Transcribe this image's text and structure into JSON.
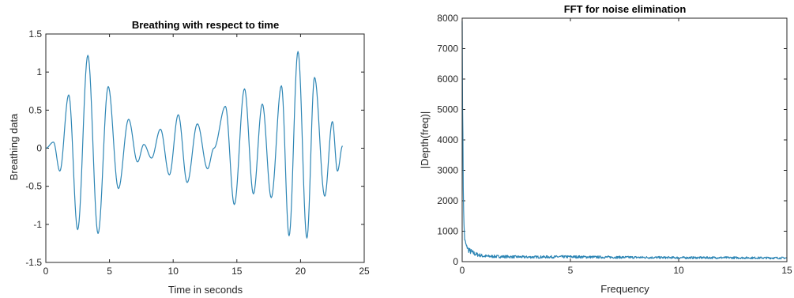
{
  "chart_data": [
    {
      "type": "line",
      "title": "Breathing with respect to time",
      "xlabel": "Time in seconds",
      "ylabel": "Breathing data",
      "xlim": [
        0,
        25
      ],
      "ylim": [
        -1.5,
        1.5
      ],
      "xticks": [
        0,
        5,
        10,
        15,
        20,
        25
      ],
      "yticks": [
        -1.5,
        -1,
        -0.5,
        0,
        0.5,
        1,
        1.5
      ],
      "xtick_labels": [
        "0",
        "5",
        "10",
        "15",
        "20",
        "25"
      ],
      "ytick_labels": [
        "-1.5",
        "-1",
        "-0.5",
        "0",
        "0.5",
        "1",
        "1.5"
      ],
      "grid": false,
      "color": "#2E86B5",
      "series": [
        {
          "extrema": [
            [
              0,
              0.0
            ],
            [
              0.6,
              0.08
            ],
            [
              1.1,
              -0.3
            ],
            [
              1.8,
              0.7
            ],
            [
              2.5,
              -1.07
            ],
            [
              3.3,
              1.22
            ],
            [
              4.1,
              -1.12
            ],
            [
              4.9,
              0.81
            ],
            [
              5.7,
              -0.53
            ],
            [
              6.5,
              0.38
            ],
            [
              7.2,
              -0.18
            ],
            [
              7.7,
              0.05
            ],
            [
              8.3,
              -0.13
            ],
            [
              9.0,
              0.25
            ],
            [
              9.7,
              -0.35
            ],
            [
              10.4,
              0.44
            ],
            [
              11.1,
              -0.45
            ],
            [
              11.9,
              0.32
            ],
            [
              12.7,
              -0.27
            ],
            [
              13.2,
              0.0
            ],
            [
              14.1,
              0.55
            ],
            [
              14.8,
              -0.74
            ],
            [
              15.6,
              0.78
            ],
            [
              16.3,
              -0.6
            ],
            [
              17.0,
              0.58
            ],
            [
              17.7,
              -0.65
            ],
            [
              18.5,
              0.82
            ],
            [
              19.1,
              -1.15
            ],
            [
              19.8,
              1.27
            ],
            [
              20.5,
              -1.18
            ],
            [
              21.1,
              0.93
            ],
            [
              21.9,
              -0.63
            ],
            [
              22.5,
              0.35
            ],
            [
              22.9,
              -0.3
            ],
            [
              23.3,
              0.03
            ]
          ]
        }
      ]
    },
    {
      "type": "line",
      "title": "FFT for noise elimination",
      "xlabel": "Frequency",
      "ylabel": "|Depth(freq)|",
      "xlim": [
        0,
        15
      ],
      "ylim": [
        0,
        8000
      ],
      "xticks": [
        0,
        5,
        10,
        15
      ],
      "yticks": [
        0,
        1000,
        2000,
        3000,
        4000,
        5000,
        6000,
        7000,
        8000
      ],
      "xtick_labels": [
        "0",
        "5",
        "10",
        "15"
      ],
      "ytick_labels": [
        "0",
        "1000",
        "2000",
        "3000",
        "4000",
        "5000",
        "6000",
        "7000",
        "8000"
      ],
      "grid": false,
      "color": "#2E86B5",
      "series": [
        {
          "envelope": [
            [
              0,
              7900
            ],
            [
              0.04,
              3000
            ],
            [
              0.08,
              1200
            ],
            [
              0.12,
              700
            ],
            [
              0.2,
              500
            ],
            [
              0.35,
              350
            ],
            [
              0.6,
              250
            ],
            [
              1.0,
              180
            ],
            [
              1.5,
              170
            ],
            [
              3,
              150
            ],
            [
              5,
              160
            ],
            [
              6,
              150
            ],
            [
              8,
              140
            ],
            [
              10,
              130
            ],
            [
              12,
              130
            ],
            [
              15,
              120
            ]
          ]
        }
      ]
    }
  ]
}
